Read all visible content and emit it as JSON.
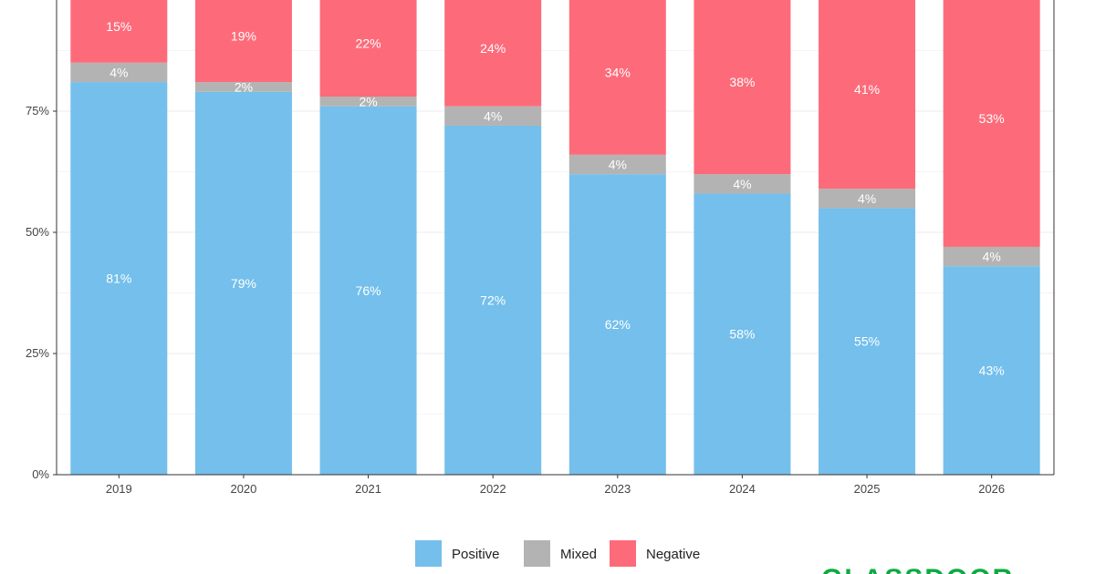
{
  "chart_data": {
    "type": "bar",
    "stacked": true,
    "percent": true,
    "categories": [
      "2019",
      "2020",
      "2021",
      "2022",
      "2023",
      "2024",
      "2025",
      "2026"
    ],
    "series": [
      {
        "name": "Positive",
        "color": "#74bfeb",
        "values": [
          81,
          79,
          76,
          72,
          62,
          58,
          55,
          43
        ]
      },
      {
        "name": "Mixed",
        "color": "#b3b3b3",
        "values": [
          4,
          2,
          2,
          4,
          4,
          4,
          4,
          4
        ]
      },
      {
        "name": "Negative",
        "color": "#fd6b7a",
        "values": [
          15,
          19,
          22,
          24,
          34,
          38,
          41,
          53
        ]
      }
    ],
    "bar_label_texts": [
      [
        "81%",
        "79%",
        "76%",
        "72%",
        "62%",
        "58%",
        "55%",
        "43%"
      ],
      [
        "4%",
        "2%",
        "2%",
        "4%",
        "4%",
        "4%",
        "4%",
        "4%"
      ],
      [
        "15%",
        "19%",
        "22%",
        "24%",
        "34%",
        "38%",
        "41%",
        "53%"
      ]
    ],
    "ylim": [
      0,
      100
    ],
    "yticks": [
      0,
      25,
      50,
      75
    ],
    "ytick_labels": [
      "0%",
      "25%",
      "50%",
      "75%"
    ],
    "title": "",
    "xlabel": "",
    "ylabel": "",
    "grid": true,
    "legend_position": "bottom"
  },
  "watermark": {
    "text": "GLASSDOOR",
    "color": "#0caa41"
  }
}
